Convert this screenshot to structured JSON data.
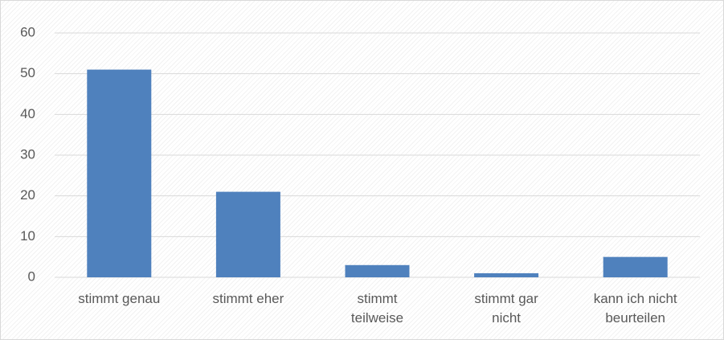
{
  "chart_data": {
    "type": "bar",
    "categories": [
      "stimmt genau",
      "stimmt eher",
      "stimmt\nteilweise",
      "stimmt gar\nnicht",
      "kann ich nicht\nbeurteilen"
    ],
    "values": [
      51,
      21,
      3,
      1,
      5
    ],
    "color": "#4f81bd",
    "ylim": [
      0,
      60
    ],
    "yticks": [
      0,
      10,
      20,
      30,
      40,
      50,
      60
    ],
    "grid": true
  }
}
